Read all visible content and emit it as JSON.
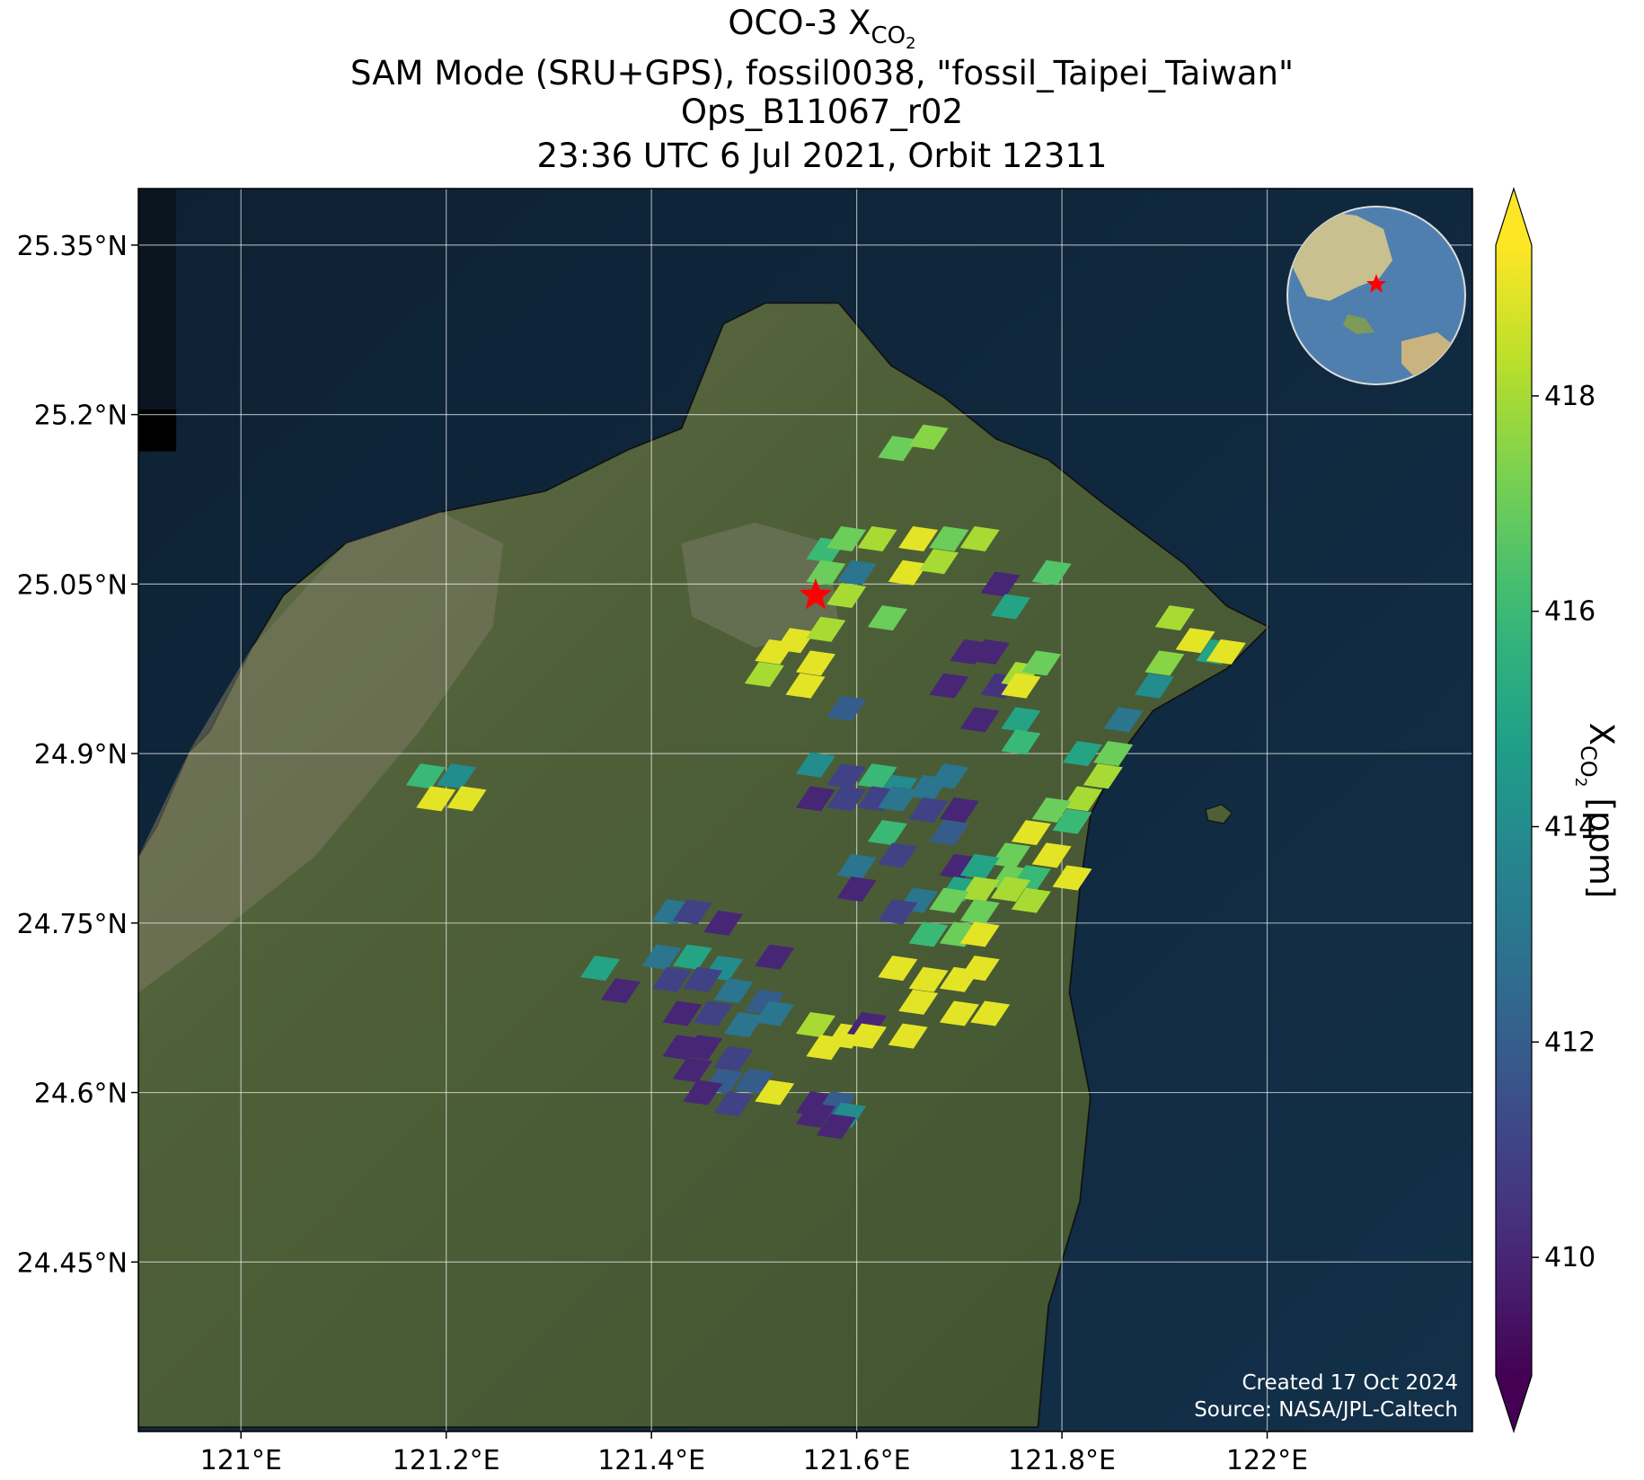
{
  "chart_data": {
    "type": "footprint-map",
    "title_lines": [
      {
        "text": "OCO-3 X",
        "sub": "CO",
        "subsub": "2"
      },
      "SAM Mode (SRU+GPS), fossil0038, \"fossil_Taipei_Taiwan\"",
      "Ops_B11067_r02",
      "23:36 UTC 6 Jul 2021, Orbit 12311"
    ],
    "xlim": [
      120.9,
      122.2
    ],
    "ylim": [
      24.3,
      25.4
    ],
    "xticks": [
      {
        "value": 121,
        "label": "121°E"
      },
      {
        "value": 121.2,
        "label": "121.2°E"
      },
      {
        "value": 121.4,
        "label": "121.4°E"
      },
      {
        "value": 121.6,
        "label": "121.6°E"
      },
      {
        "value": 121.8,
        "label": "121.8°E"
      },
      {
        "value": 122,
        "label": "122°E"
      }
    ],
    "yticks": [
      {
        "value": 24.45,
        "label": "24.45°N"
      },
      {
        "value": 24.6,
        "label": "24.6°N"
      },
      {
        "value": 24.75,
        "label": "24.75°N"
      },
      {
        "value": 24.9,
        "label": "24.9°N"
      },
      {
        "value": 25.05,
        "label": "25.05°N"
      },
      {
        "value": 25.2,
        "label": "25.2°N"
      },
      {
        "value": 25.35,
        "label": "25.35°N"
      }
    ],
    "grid": true,
    "colormap": "viridis",
    "clim": [
      408.9,
      419.4
    ],
    "cticks": [
      410,
      412,
      414,
      416,
      418
    ],
    "colorbar_label": {
      "main": "X",
      "sub": "CO",
      "subsub": "2",
      "unit": "[ppm]"
    },
    "target": {
      "lon": 121.56,
      "lat": 25.04,
      "color": "#ff0000"
    },
    "credits": [
      "Created 17 Oct 2024",
      "Source: NASA/JPL-Caltech"
    ],
    "soundings": {
      "lon": [
        121.64,
        121.67,
        121.57,
        121.59,
        121.62,
        121.66,
        121.69,
        121.72,
        121.57,
        121.6,
        121.65,
        121.68,
        121.74,
        121.79,
        121.59,
        121.63,
        121.75,
        121.54,
        121.57,
        121.52,
        121.56,
        121.51,
        121.55,
        121.71,
        121.73,
        121.69,
        121.74,
        121.76,
        121.78,
        121.76,
        121.76,
        121.72,
        121.76,
        121.59,
        121.91,
        121.93,
        121.9,
        121.95,
        121.96,
        121.89,
        121.86,
        121.82,
        121.85,
        121.84,
        121.82,
        121.79,
        121.81,
        121.56,
        121.59,
        121.62,
        121.64,
        121.67,
        121.69,
        121.56,
        121.59,
        121.62,
        121.64,
        121.67,
        121.7,
        121.63,
        121.64,
        121.69,
        121.7,
        121.6,
        121.6,
        121.18,
        121.21,
        121.19,
        121.22,
        121.77,
        121.75,
        121.79,
        121.81,
        121.72,
        121.75,
        121.77,
        121.7,
        121.72,
        121.75,
        121.77,
        121.66,
        121.69,
        121.72,
        121.64,
        121.67,
        121.7,
        121.72,
        121.64,
        121.67,
        121.7,
        121.72,
        121.66,
        121.7,
        121.73,
        121.56,
        121.59,
        121.61,
        121.57,
        121.61,
        121.65,
        121.42,
        121.44,
        121.47,
        121.52,
        121.35,
        121.37,
        121.41,
        121.44,
        121.47,
        121.42,
        121.45,
        121.48,
        121.51,
        121.52,
        121.43,
        121.46,
        121.49,
        121.43,
        121.45,
        121.48,
        121.44,
        121.47,
        121.5,
        121.45,
        121.48,
        121.52,
        121.56,
        121.58,
        121.56,
        121.59,
        121.58
      ],
      "lat": [
        25.17,
        25.18,
        25.08,
        25.09,
        25.09,
        25.09,
        25.09,
        25.09,
        25.06,
        25.06,
        25.06,
        25.07,
        25.05,
        25.06,
        25.04,
        25.02,
        25.03,
        25.0,
        25.01,
        24.99,
        24.98,
        24.97,
        24.96,
        24.99,
        24.99,
        24.96,
        24.96,
        24.97,
        24.98,
        24.96,
        24.93,
        24.93,
        24.91,
        24.94,
        25.02,
        25.0,
        24.98,
        24.99,
        24.99,
        24.96,
        24.93,
        24.9,
        24.9,
        24.88,
        24.86,
        24.85,
        24.84,
        24.89,
        24.88,
        24.88,
        24.87,
        24.87,
        24.88,
        24.86,
        24.86,
        24.86,
        24.86,
        24.85,
        24.85,
        24.83,
        24.81,
        24.83,
        24.8,
        24.8,
        24.78,
        24.88,
        24.88,
        24.86,
        24.86,
        24.83,
        24.81,
        24.81,
        24.79,
        24.8,
        24.79,
        24.79,
        24.78,
        24.78,
        24.78,
        24.77,
        24.77,
        24.77,
        24.76,
        24.76,
        24.74,
        24.74,
        24.74,
        24.71,
        24.7,
        24.7,
        24.71,
        24.68,
        24.67,
        24.67,
        24.66,
        24.65,
        24.66,
        24.64,
        24.65,
        24.65,
        24.76,
        24.76,
        24.75,
        24.72,
        24.71,
        24.69,
        24.72,
        24.72,
        24.71,
        24.7,
        24.7,
        24.69,
        24.68,
        24.67,
        24.67,
        24.67,
        24.66,
        24.64,
        24.64,
        24.63,
        24.62,
        24.61,
        24.61,
        24.6,
        24.59,
        24.6,
        24.59,
        24.59,
        24.58,
        24.58,
        24.57
      ],
      "xco2": [
        417,
        417.5,
        416,
        417,
        418,
        419,
        417,
        418,
        417,
        413,
        419,
        418,
        410,
        416.5,
        418,
        417,
        415,
        419,
        418,
        419,
        419,
        418,
        419,
        410,
        410,
        410,
        410.5,
        418,
        417,
        419,
        415,
        410,
        416,
        412,
        418,
        419,
        417.5,
        415,
        419,
        414,
        413,
        415,
        417,
        418,
        418,
        417,
        416,
        414,
        411,
        416,
        414,
        413,
        413,
        410,
        411,
        411,
        413,
        411,
        410,
        416,
        411,
        412,
        410,
        413,
        410,
        416,
        414,
        419,
        419,
        419,
        417,
        419,
        419,
        415,
        417,
        416,
        415,
        418,
        418,
        418,
        413,
        417,
        417,
        411,
        416,
        417,
        419,
        419,
        419,
        419,
        419,
        419,
        419,
        419,
        418,
        419,
        410,
        419,
        419,
        419,
        413,
        411,
        410,
        410,
        415,
        410,
        413,
        415,
        414,
        411,
        411,
        413,
        412,
        413,
        410,
        411,
        413,
        410,
        410,
        411,
        410,
        412,
        412,
        410,
        411,
        419,
        410,
        412,
        410,
        414,
        410
      ]
    }
  }
}
